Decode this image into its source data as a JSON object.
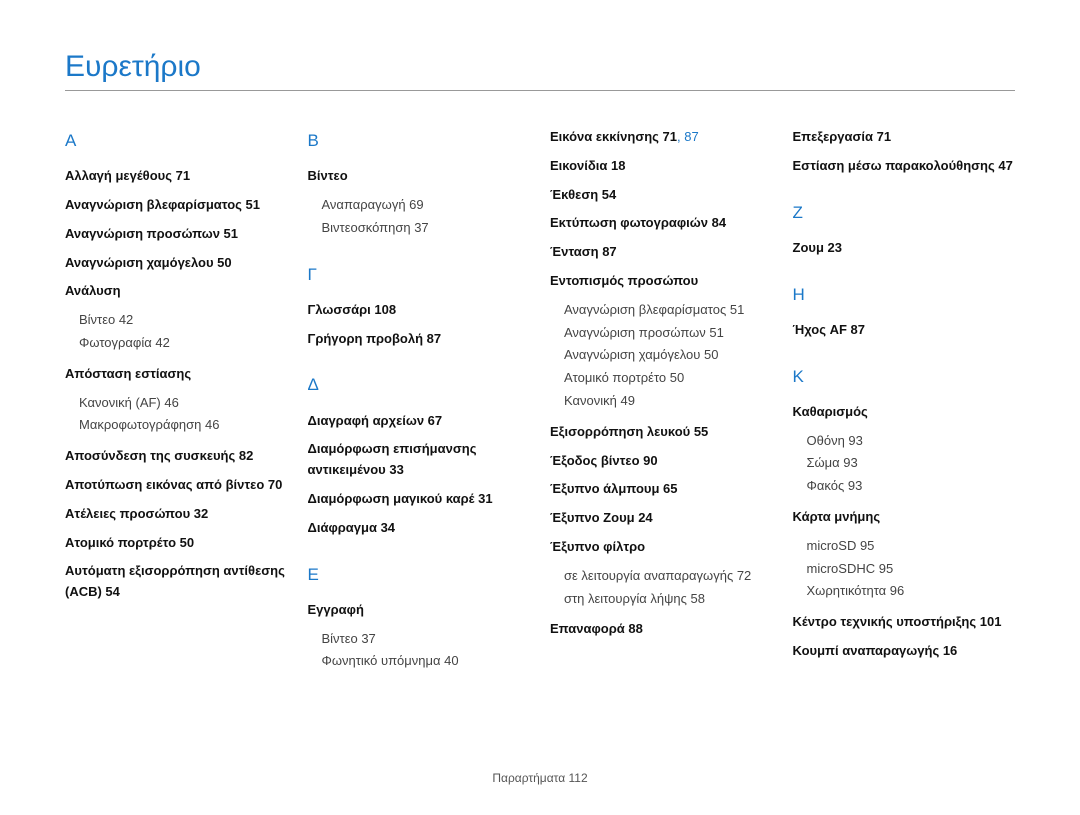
{
  "colors": {
    "primary": "#1b78c8",
    "text": "#333333",
    "subtext": "#444444",
    "divider": "#999999",
    "background": "#ffffff"
  },
  "typography": {
    "title_fontsize": 30,
    "letter_fontsize": 17,
    "body_fontsize": 13,
    "footer_fontsize": 12,
    "font_family": "Arial"
  },
  "page_title": "Ευρετήριο",
  "footer": {
    "label": "Παραρτήματα",
    "page": "112"
  },
  "col1": {
    "A": {
      "letter": "Α",
      "resize": "Αλλαγή μεγέθους  71",
      "blink": "Αναγνώριση βλεφαρίσματος 51",
      "face": "Αναγνώριση προσώπων  51",
      "smile": "Αναγνώριση χαμόγελου  50",
      "resolution": {
        "head": "Ανάλυση",
        "video": "Βίντεο  42",
        "photo": "Φωτογραφία  42"
      },
      "focus": {
        "head": "Απόσταση εστίασης",
        "normal": "Κανονική (AF)  46",
        "macro": "Μακροφωτογράφηση  46"
      },
      "disconnect": "Αποσύνδεση της συσκευής 82",
      "capture": "Αποτύπωση εικόνας από βίντεο  70",
      "blemish": "Ατέλειες προσώπου  32",
      "selfportrait": "Ατομικό πορτρέτο  50",
      "acb": "Αυτόματη εξισορρόπηση αντίθεσης (ACB)  54"
    }
  },
  "col2": {
    "B": {
      "letter": "Β",
      "video": {
        "head": "Βίντεο",
        "play": "Αναπαραγωγή  69",
        "shoot": "Βιντεοσκόπηση  37"
      }
    },
    "G": {
      "letter": "Γ",
      "glossary": "Γλωσσάρι  108",
      "quickview": "Γρήγορη προβολή  87"
    },
    "D": {
      "letter": "Δ",
      "delete": "Διαγραφή αρχείων  67",
      "objconf": "Διαμόρφωση επισήμανσης αντικειμένου  33",
      "magic": "Διαμόρφωση μαγικού καρέ 31",
      "aperture": "Διάφραγμα  34"
    },
    "E": {
      "letter": "Ε",
      "record": {
        "head": "Εγγραφή",
        "video": "Βίντεο  37",
        "memo": "Φωνητικό υπόμνημα  40"
      }
    }
  },
  "col3": {
    "E": {
      "startimg": {
        "label": "Εικόνα εκκίνησης  ",
        "p1": "71",
        "sep": ", ",
        "p2": "87"
      },
      "icons": "Εικονίδια  18",
      "exposure": "Έκθεση  54",
      "print": "Εκτύπωση φωτογραφιών  84",
      "intensity": "Ένταση  87",
      "facedet": {
        "head": "Εντοπισμός προσώπου",
        "blink": "Αναγνώριση βλεφαρίσματος 51",
        "face": "Αναγνώριση προσώπων  51",
        "smile": "Αναγνώριση χαμόγελου  50",
        "self": "Ατομικό πορτρέτο  50",
        "normal": "Κανονική  49"
      },
      "wb": "Εξισορρόπηση λευκού  55",
      "vidout": "Έξοδος βίντεο  90",
      "album": "Έξυπνο άλμπουμ  65",
      "zoom": "Έξυπνο Ζουμ  24",
      "filter": {
        "head": "Έξυπνο φίλτρο",
        "play": "σε λειτουργία αναπαραγωγής 72",
        "shoot": "στη λειτουργία λήψης  58"
      },
      "reset": "Επαναφορά  88"
    }
  },
  "col4": {
    "E": {
      "edit": "Επεξεργασία  71",
      "trackaf": "Εστίαση μέσω παρακολούθησης  47"
    },
    "Z": {
      "letter": "Ζ",
      "zoom": "Ζουμ  23"
    },
    "H": {
      "letter": "Η",
      "afsound": "Ήχος AF  87"
    },
    "K": {
      "letter": "Κ",
      "clean": {
        "head": "Καθαρισμός",
        "screen": "Οθόνη  93",
        "body": "Σώμα  93",
        "lens": "Φακός  93"
      },
      "memcard": {
        "head": "Κάρτα μνήμης",
        "sd": "microSD  95",
        "sdhc": "microSDHC  95",
        "cap": "Χωρητικότητα  96"
      },
      "support": "Κέντρο τεχνικής υποστήριξης 101",
      "playbtn": "Κουμπί αναπαραγωγής  16"
    }
  }
}
